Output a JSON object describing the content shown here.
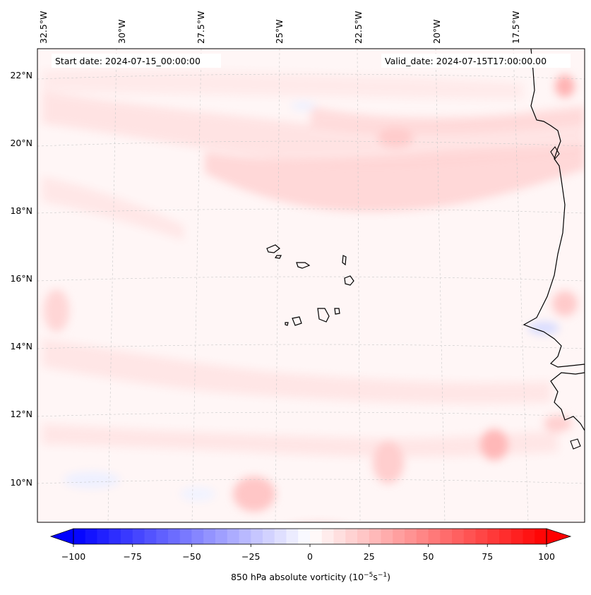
{
  "map": {
    "start_date": "Start date: 2024-07-15_00:00:00",
    "valid_date": "Valid_date: 2024-07-15T17:00:00.00",
    "lon_labels": [
      "32.5°W",
      "30°W",
      "27.5°W",
      "25°W",
      "22.5°W",
      "20°W",
      "17.5°W"
    ],
    "lat_labels": [
      "22°N",
      "20°N",
      "18°N",
      "16°N",
      "14°N",
      "12°N",
      "10°N"
    ],
    "field": "850 hPa absolute vorticity",
    "grid": true
  },
  "colorbar": {
    "label": "850 hPa absolute vorticity (10",
    "exp1": "−5",
    "mid": "s",
    "exp2": "−1",
    "label_end": ")",
    "ticks": [
      "−100",
      "−75",
      "−50",
      "−25",
      "0",
      "25",
      "50",
      "75",
      "100"
    ],
    "min": -100,
    "max": 100,
    "extend": "both",
    "colors": {
      "low": "#0000ff",
      "mid": "#ffffff",
      "high": "#ff0000"
    }
  }
}
